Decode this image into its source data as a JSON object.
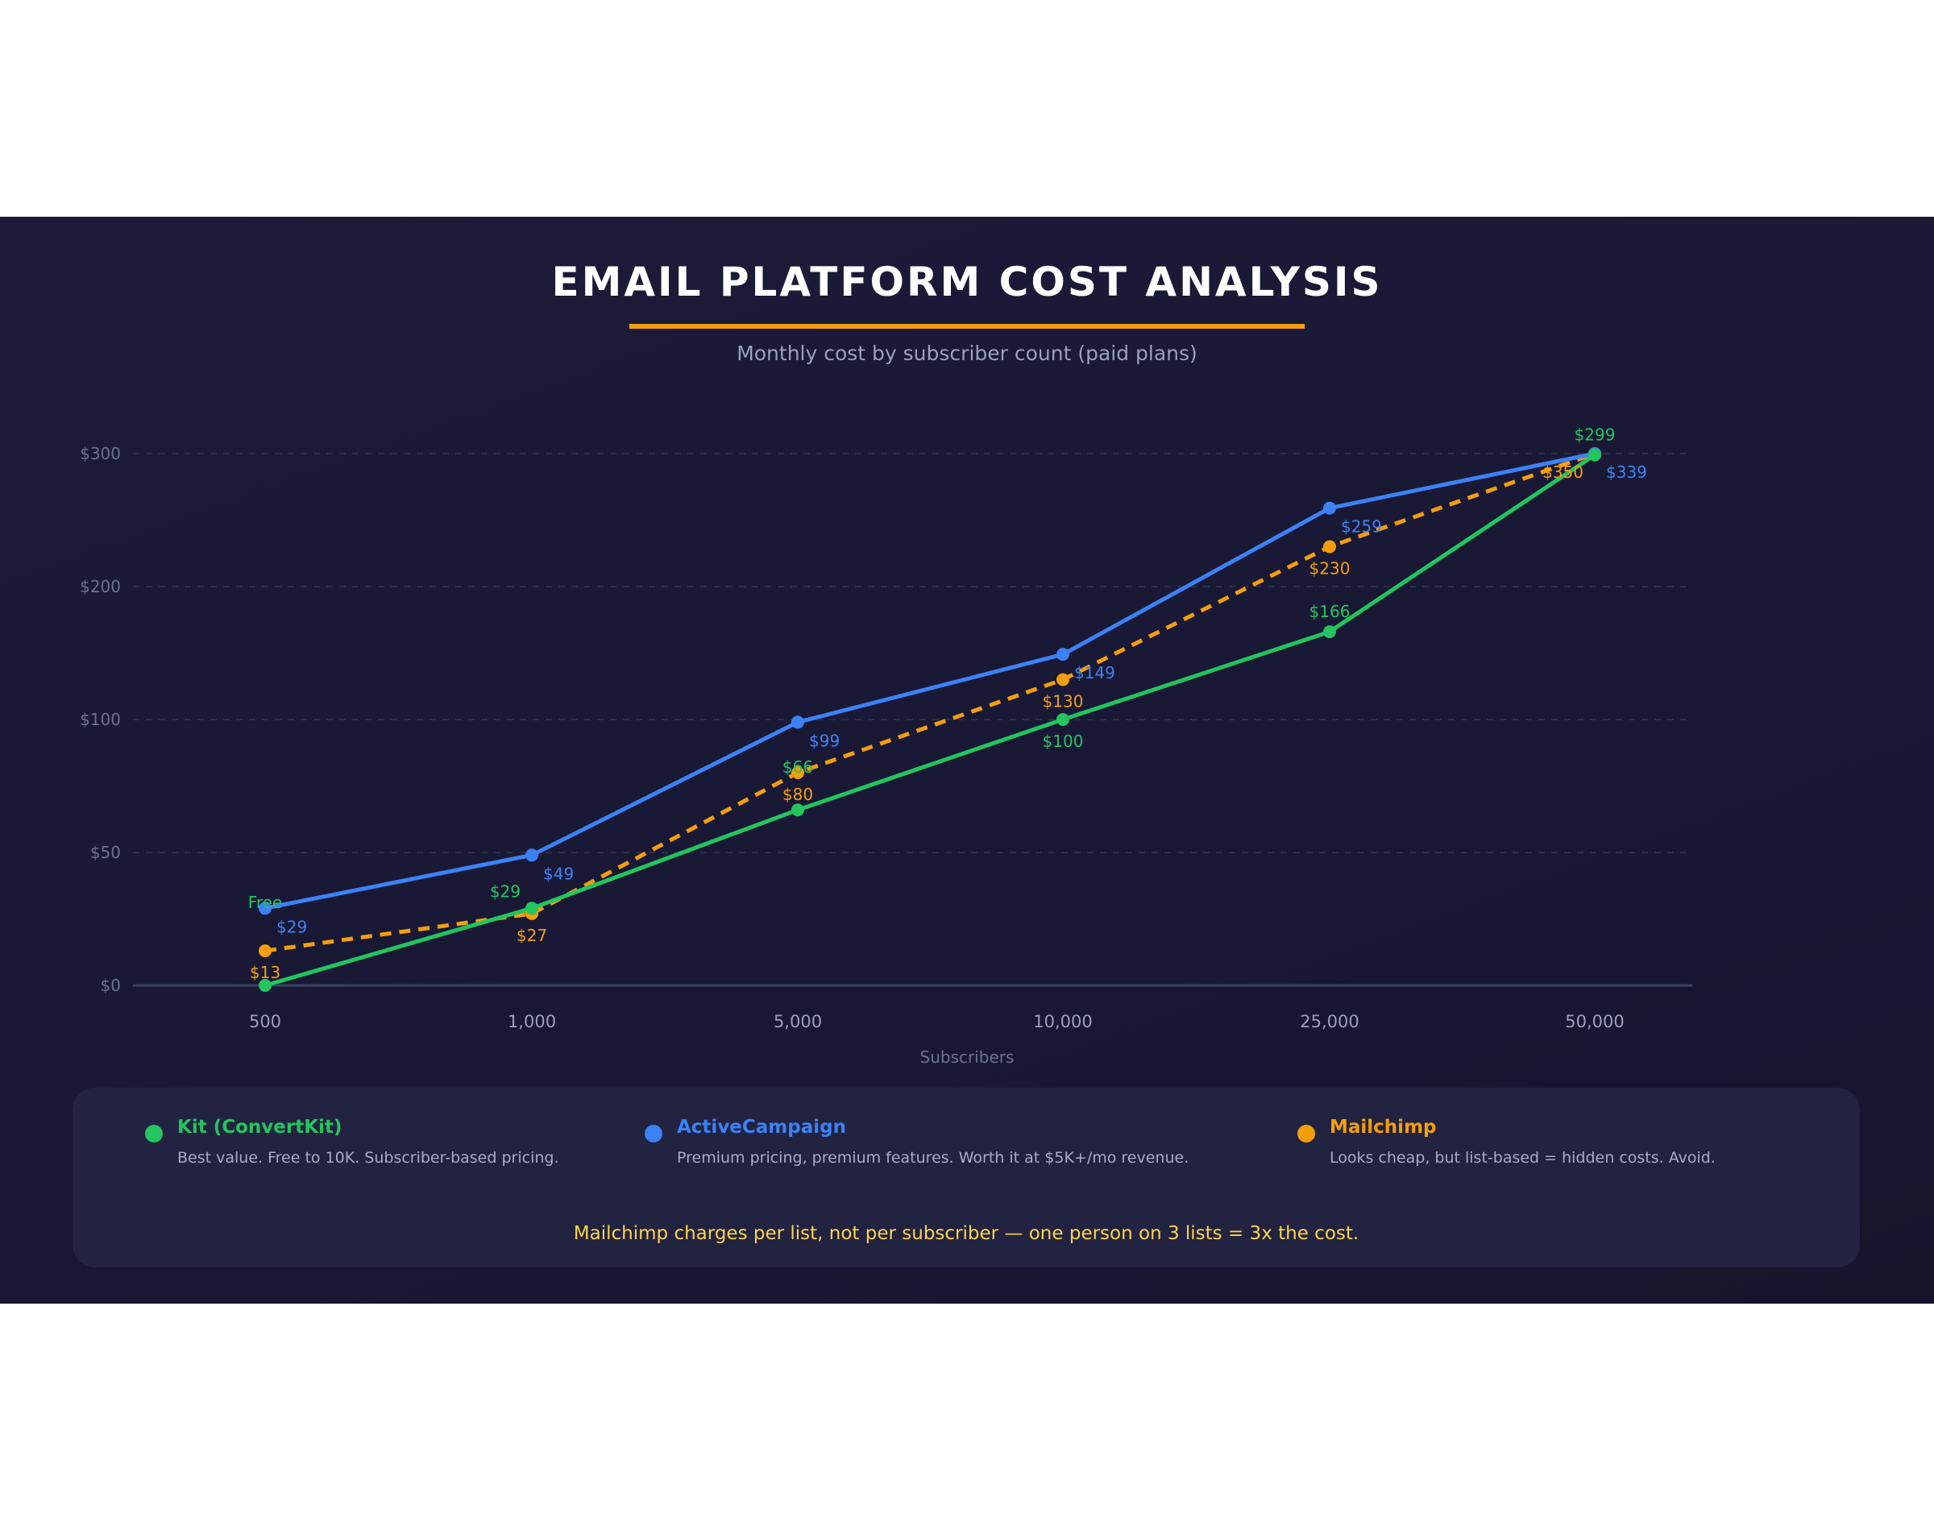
{
  "chart_data": {
    "type": "line",
    "title": "EMAIL PLATFORM COST ANALYSIS",
    "subtitle": "Monthly cost by subscriber count (paid plans)",
    "xlabel": "Subscribers",
    "ylabel": "",
    "categories": [
      "500",
      "1,000",
      "5,000",
      "10,000",
      "25,000",
      "50,000"
    ],
    "y_ticks": [
      0,
      50,
      100,
      200,
      300
    ],
    "y_tick_labels": [
      "$0",
      "$50",
      "$100",
      "$200",
      "$300"
    ],
    "ylim": [
      0,
      300
    ],
    "grid": true,
    "series": [
      {
        "name": "Kit (ConvertKit)",
        "color": "#22c55e",
        "dashed": false,
        "values": [
          0,
          29,
          66,
          100,
          166,
          299
        ],
        "labels": [
          "Free",
          "$29",
          "$66",
          "$100",
          "$166",
          "$299"
        ]
      },
      {
        "name": "ActiveCampaign",
        "color": "#3b82f6",
        "dashed": false,
        "values": [
          29,
          49,
          99,
          149,
          259,
          339
        ],
        "labels": [
          "$29",
          "$49",
          "$99",
          "$149",
          "$259",
          "$339"
        ]
      },
      {
        "name": "Mailchimp",
        "color": "#f59e0b",
        "dashed": true,
        "values": [
          13,
          27,
          80,
          130,
          230,
          350
        ],
        "labels": [
          "$13",
          "$27",
          "$80",
          "$130",
          "$230",
          "$350"
        ]
      }
    ]
  },
  "legend": {
    "items": [
      {
        "name": "Kit (ConvertKit)",
        "desc": "Best value. Free to 10K. Subscriber-based pricing.",
        "color": "#22c55e"
      },
      {
        "name": "ActiveCampaign",
        "desc": "Premium pricing, premium features. Worth it at $5K+/mo revenue.",
        "color": "#3b82f6"
      },
      {
        "name": "Mailchimp",
        "desc": "Looks cheap, but list-based = hidden costs. Avoid.",
        "color": "#f59e0b"
      }
    ],
    "note": "Mailchimp charges per list, not per subscriber — one person on 3 lists = 3x the cost."
  }
}
